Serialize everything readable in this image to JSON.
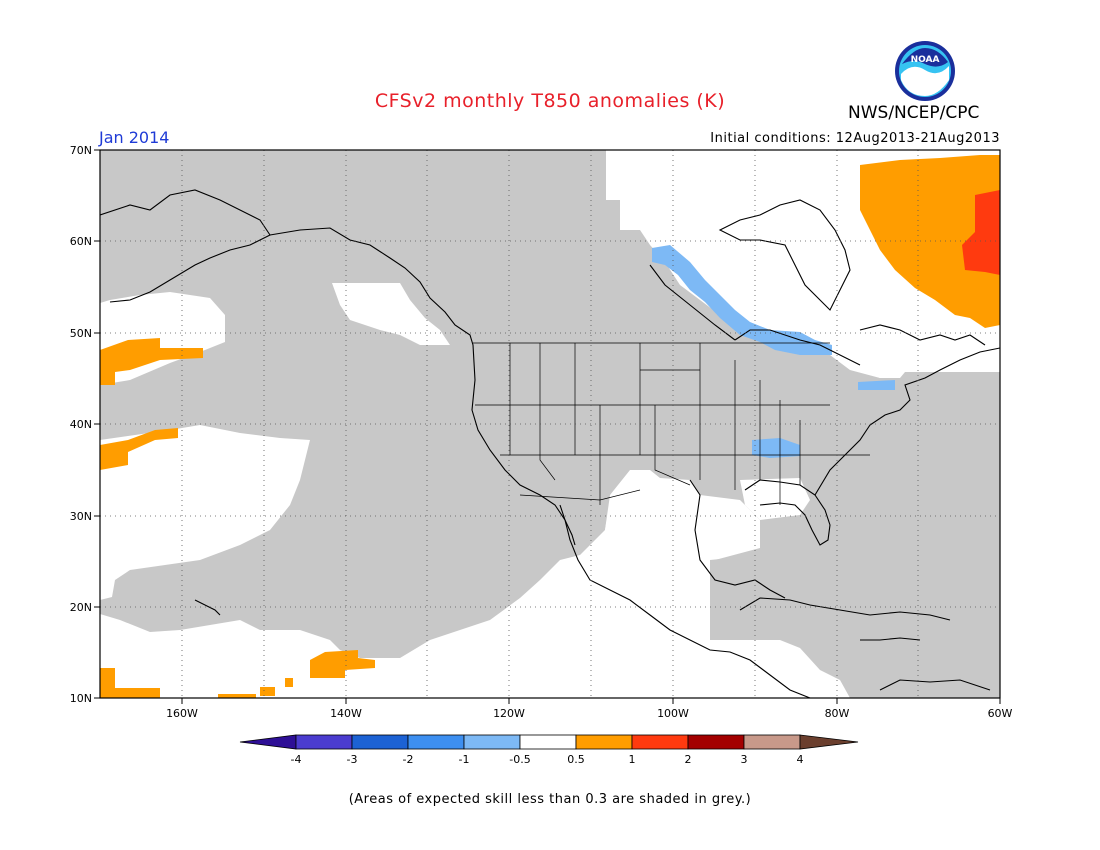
{
  "header": {
    "title": "CFSv2 monthly T850 anomalies (K)",
    "organization": "NWS/NCEP/CPC",
    "logo_text": "NOAA",
    "month": "Jan 2014",
    "initial_conditions": "Initial conditions: 12Aug2013-21Aug2013"
  },
  "map": {
    "lat_labels": [
      "70N",
      "60N",
      "50N",
      "40N",
      "30N",
      "20N",
      "10N"
    ],
    "lon_labels": [
      "160W",
      "140W",
      "120W",
      "100W",
      "80W",
      "60W"
    ],
    "colors": {
      "skill_grey": "#c8c8c8",
      "neg_light_blue": "#7db9f5",
      "pos_orange": "#ff9d00",
      "pos_red": "#ff3a0f",
      "coast": "#000000"
    }
  },
  "colorbar": {
    "tick_labels": [
      "-4",
      "-3",
      "-2",
      "-1",
      "-0.5",
      "0.5",
      "1",
      "2",
      "3",
      "4"
    ],
    "colors": [
      "#2e0f96",
      "#4b3ccf",
      "#1c62d4",
      "#3d8ff0",
      "#7db9f5",
      "#ffffff",
      "#ff9d00",
      "#ff3a0f",
      "#a30000",
      "#c8998a",
      "#6b3f2e"
    ]
  },
  "footnote": "(Areas of expected skill less than 0.3 are shaded in grey.)"
}
